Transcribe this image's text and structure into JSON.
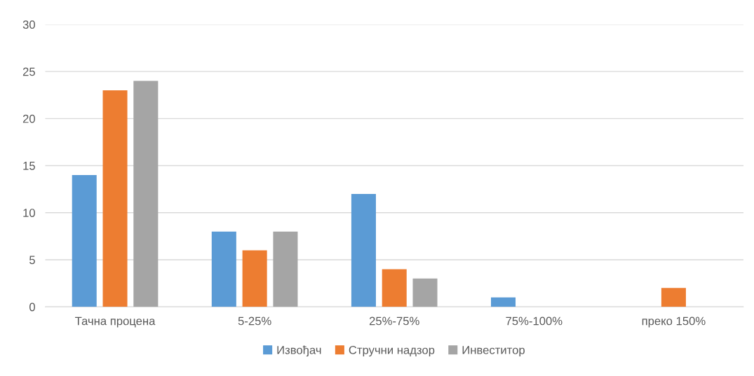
{
  "chart_data": {
    "type": "bar",
    "categories": [
      "Тачна процена",
      "5-25%",
      "25%-75%",
      "75%-100%",
      "преко 150%"
    ],
    "series": [
      {
        "name": "Извођач",
        "color": "#5b9bd5",
        "values": [
          14,
          8,
          12,
          1,
          0
        ]
      },
      {
        "name": "Стручни надзор",
        "color": "#ed7d31",
        "values": [
          23,
          6,
          4,
          0,
          2
        ]
      },
      {
        "name": "Инвеститор",
        "color": "#a5a5a5",
        "values": [
          24,
          8,
          3,
          0,
          0
        ]
      }
    ],
    "ylim": [
      0,
      30
    ],
    "yticks": [
      0,
      5,
      10,
      15,
      20,
      25,
      30
    ],
    "grid": "y",
    "legend": "bottom"
  }
}
